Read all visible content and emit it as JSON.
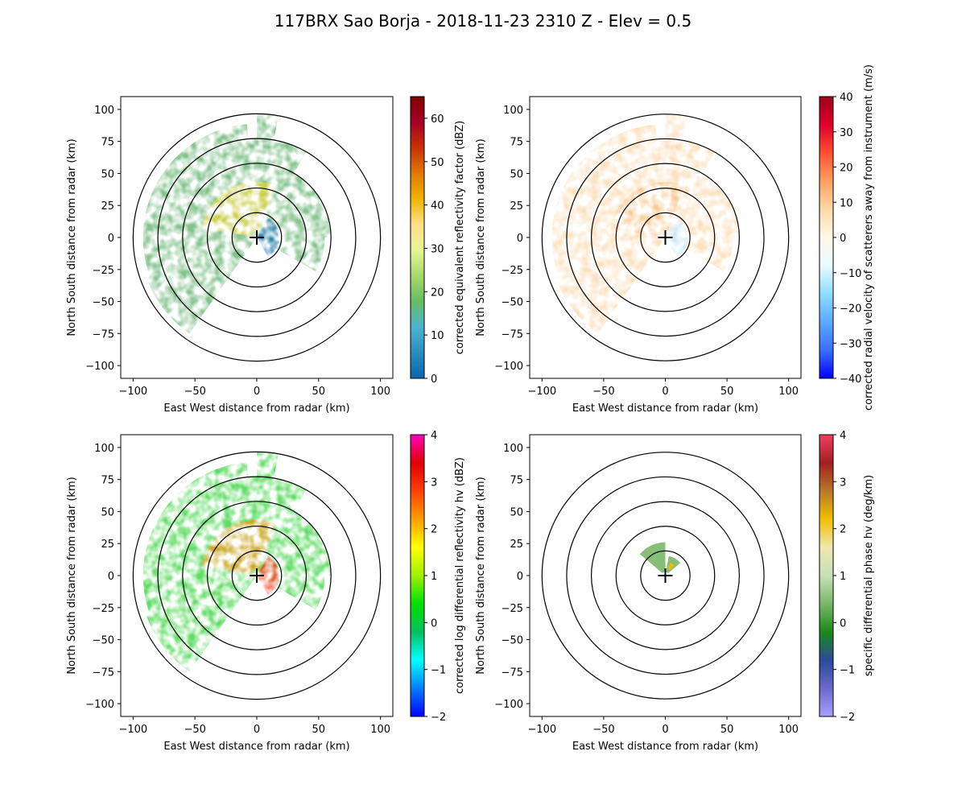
{
  "figure": {
    "title": "117BRX Sao Borja - 2018-11-23 2310 Z -  Elev = 0.5"
  },
  "chart_data": [
    {
      "type": "heatmap",
      "subtype": "radar-ppi",
      "xlabel": "East West distance from radar (km)",
      "ylabel": "North South distance from radar (km)",
      "xlim": [
        -110,
        110
      ],
      "ylim": [
        -110,
        110
      ],
      "xticks": [
        -100,
        -50,
        0,
        50,
        100
      ],
      "yticks": [
        -100,
        -75,
        -50,
        -25,
        0,
        25,
        50,
        75,
        100
      ],
      "range_rings_km": [
        20,
        40,
        60,
        80,
        100
      ],
      "colorbar": {
        "label": "corrected equivalent reflectivity factor (dBZ)",
        "min": 0,
        "max": 65,
        "ticks": [
          0,
          10,
          20,
          30,
          40,
          50,
          60
        ],
        "stops": [
          "#0868ac",
          "#2b8cbe",
          "#4eb3d3",
          "#66bd63",
          "#a6d96a",
          "#e6f598",
          "#fee08b",
          "#f0b400",
          "#e07b00",
          "#c83200",
          "#a50026",
          "#800000"
        ]
      },
      "echo_color": "#6fb87a",
      "hot_color": "#e6d63a",
      "near_color": "#1f78b4"
    },
    {
      "type": "heatmap",
      "subtype": "radar-ppi",
      "xlabel": "East West distance from radar (km)",
      "ylabel": "North South distance from radar (km)",
      "xlim": [
        -110,
        110
      ],
      "ylim": [
        -110,
        110
      ],
      "xticks": [
        -100,
        -50,
        0,
        50,
        100
      ],
      "yticks": [
        -100,
        -75,
        -50,
        -25,
        0,
        25,
        50,
        75,
        100
      ],
      "range_rings_km": [
        20,
        40,
        60,
        80,
        100
      ],
      "colorbar": {
        "label": "corrected radial velocity of scatterers away from instrument (m/s)",
        "min": -40,
        "max": 40,
        "ticks": [
          -40,
          -30,
          -20,
          -10,
          0,
          10,
          20,
          30,
          40
        ],
        "stops": [
          "#0000ff",
          "#3a6fff",
          "#5aaaff",
          "#8fdcff",
          "#e8fbff",
          "#fff8e8",
          "#ffd9a6",
          "#ffa060",
          "#ff5030",
          "#e0002a",
          "#a0001c"
        ]
      },
      "echo_color": "#fbdcb4",
      "hot_color": "#f7c48a",
      "near_color": "#bfeaff"
    },
    {
      "type": "heatmap",
      "subtype": "radar-ppi",
      "xlabel": "East West distance from radar (km)",
      "ylabel": "North South distance from radar (km)",
      "xlim": [
        -110,
        110
      ],
      "ylim": [
        -110,
        110
      ],
      "xticks": [
        -100,
        -50,
        0,
        50,
        100
      ],
      "yticks": [
        -100,
        -75,
        -50,
        -25,
        0,
        25,
        50,
        75,
        100
      ],
      "range_rings_km": [
        20,
        40,
        60,
        80,
        100
      ],
      "colorbar": {
        "label": "corrected log differential reflectivity hv (dBZ)",
        "min": -2,
        "max": 4,
        "ticks": [
          -2,
          -1,
          0,
          1,
          2,
          3,
          4
        ],
        "stops": [
          "#0000ff",
          "#0080ff",
          "#00ffff",
          "#00c060",
          "#00e000",
          "#a0f000",
          "#ffff00",
          "#ffa000",
          "#ff4000",
          "#e00000",
          "#ff00c0"
        ]
      },
      "echo_color": "#44d64a",
      "hot_color": "#f29a1a",
      "near_color": "#ff3a1a"
    },
    {
      "type": "heatmap",
      "subtype": "radar-ppi",
      "xlabel": "East West distance from radar (km)",
      "ylabel": "North South distance from radar (km)",
      "xlim": [
        -110,
        110
      ],
      "ylim": [
        -110,
        110
      ],
      "xticks": [
        -100,
        -50,
        0,
        50,
        100
      ],
      "yticks": [
        -100,
        -75,
        -50,
        -25,
        0,
        25,
        50,
        75,
        100
      ],
      "range_rings_km": [
        20,
        40,
        60,
        80,
        100
      ],
      "colorbar": {
        "label": "specific differential phase hv (deg/km)",
        "min": -2,
        "max": 4,
        "ticks": [
          -2,
          -1,
          0,
          1,
          2,
          3,
          4
        ],
        "stops": [
          "#a8a0ff",
          "#6a6acc",
          "#2a4a9a",
          "#1a8a1a",
          "#7ab86a",
          "#c8e0b8",
          "#f0e6b0",
          "#f0c000",
          "#b8782a",
          "#a02020",
          "#f04060"
        ]
      },
      "echo_color": "#7ab86a",
      "hot_color": "#f0c000",
      "near_color": "#1a8a1a"
    }
  ]
}
